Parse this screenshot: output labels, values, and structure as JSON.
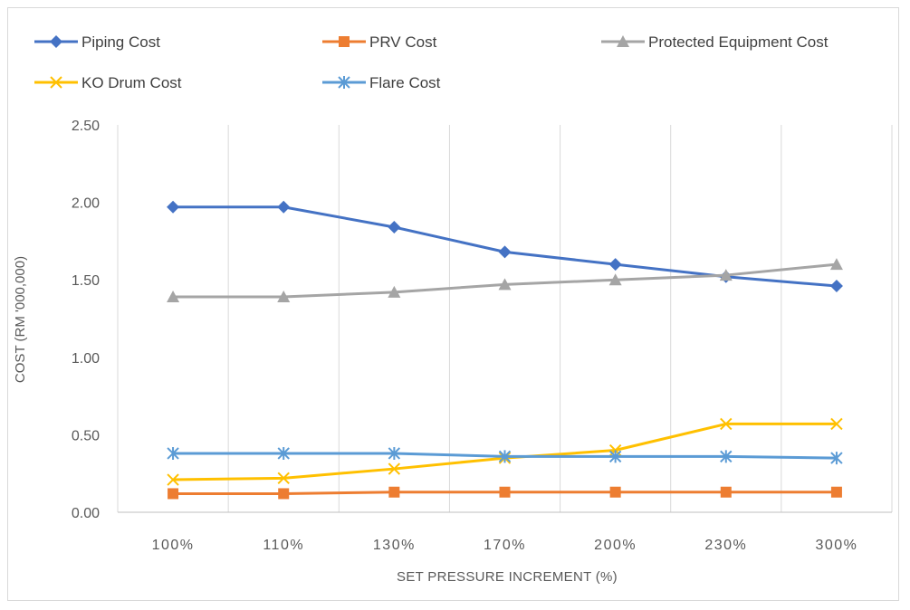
{
  "chart_data": {
    "type": "line",
    "categories": [
      "100%",
      "110%",
      "130%",
      "170%",
      "200%",
      "230%",
      "300%"
    ],
    "xlabel": "SET PRESSURE INCREMENT (%)",
    "ylabel": "COST (RM '000,000)",
    "ylim": [
      0,
      2.5
    ],
    "yticks": [
      "0.00",
      "0.50",
      "1.00",
      "1.50",
      "2.00",
      "2.50"
    ],
    "grid": "vertical",
    "legend_position": "top",
    "series": [
      {
        "name": "Piping Cost",
        "color": "#4472c4",
        "marker": "diamond",
        "values": [
          1.97,
          1.97,
          1.84,
          1.68,
          1.6,
          1.52,
          1.46
        ]
      },
      {
        "name": "PRV Cost",
        "color": "#ed7d31",
        "marker": "square",
        "values": [
          0.12,
          0.12,
          0.13,
          0.13,
          0.13,
          0.13,
          0.13
        ]
      },
      {
        "name": "Protected Equipment Cost",
        "color": "#a5a5a5",
        "marker": "triangle",
        "values": [
          1.39,
          1.39,
          1.42,
          1.47,
          1.5,
          1.53,
          1.6
        ]
      },
      {
        "name": "KO Drum Cost",
        "color": "#ffc000",
        "marker": "x",
        "values": [
          0.21,
          0.22,
          0.28,
          0.35,
          0.4,
          0.57,
          0.57
        ]
      },
      {
        "name": "Flare Cost",
        "color": "#5b9bd5",
        "marker": "star",
        "values": [
          0.38,
          0.38,
          0.38,
          0.36,
          0.36,
          0.36,
          0.35
        ]
      }
    ]
  }
}
